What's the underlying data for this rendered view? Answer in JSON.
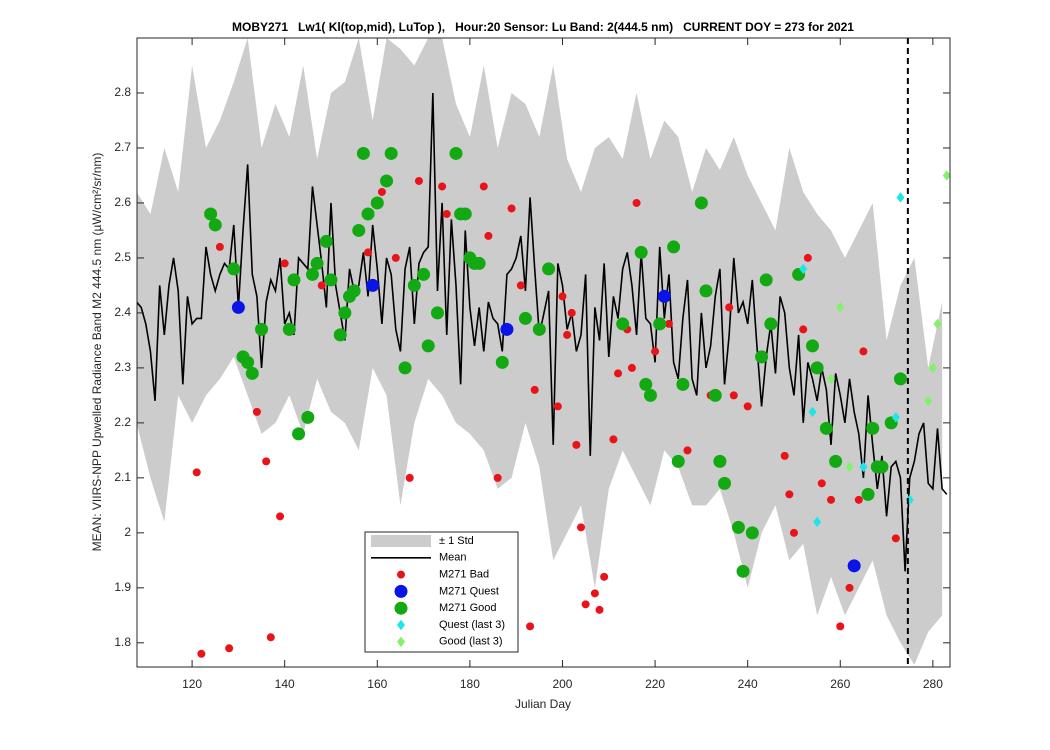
{
  "chart_data": {
    "type": "line",
    "title": "MOBY271   Lw1( Kl(top,mid), LuTop ),   Hour:20 Sensor: Lu Band: 2(444.5 nm)   CURRENT DOY = 273 for 2021",
    "xlabel": "Julian Day",
    "ylabel": "MEAN: VIIRS-NPP Upwelled Radiance Band M2 444.5 nm (µW/cm²/sr/nm)",
    "xlim": [
      108.1,
      283.7
    ],
    "ylim": [
      1.756,
      2.9
    ],
    "xticks": [
      120,
      140,
      160,
      180,
      200,
      220,
      240,
      260,
      280
    ],
    "yticks": [
      1.8,
      1.9,
      2,
      2.1,
      2.2,
      2.3,
      2.4,
      2.5,
      2.6,
      2.7,
      2.8
    ],
    "vline": 274.6,
    "series": [
      {
        "name": "± 1 Std",
        "type": "band",
        "color": "#cccccc",
        "x": [
          108,
          111,
          114,
          117,
          120,
          123,
          126,
          129,
          132,
          135,
          138,
          141,
          144,
          147,
          150,
          153,
          156,
          159,
          162,
          165,
          168,
          171,
          174,
          177,
          180,
          183,
          186,
          189,
          192,
          195,
          198,
          201,
          204,
          207,
          210,
          213,
          216,
          219,
          222,
          225,
          228,
          231,
          234,
          237,
          240,
          243,
          246,
          249,
          252,
          255,
          258,
          261,
          264,
          267,
          270,
          273,
          276,
          279,
          282
        ],
        "upper": [
          2.62,
          2.58,
          2.7,
          2.62,
          2.85,
          2.7,
          2.75,
          2.82,
          2.9,
          2.7,
          2.78,
          2.72,
          2.85,
          2.68,
          2.8,
          2.82,
          2.9,
          2.75,
          2.9,
          2.88,
          2.85,
          2.9,
          2.9,
          2.78,
          2.72,
          2.85,
          2.7,
          2.8,
          2.78,
          2.72,
          2.85,
          2.68,
          2.62,
          2.7,
          2.72,
          2.68,
          2.8,
          2.68,
          2.75,
          2.72,
          2.62,
          2.7,
          2.66,
          2.72,
          2.65,
          2.6,
          2.55,
          2.7,
          2.62,
          2.58,
          2.55,
          2.5,
          2.55,
          2.6,
          2.35,
          2.45,
          2.5,
          2.3,
          2.42
        ],
        "lower": [
          2.2,
          2.1,
          2.02,
          2.25,
          2.2,
          2.25,
          2.28,
          2.32,
          2.25,
          2.18,
          2.2,
          2.25,
          2.18,
          2.28,
          2.22,
          2.2,
          2.15,
          2.3,
          2.25,
          2.05,
          2.2,
          2.28,
          2.25,
          2.2,
          2.18,
          2.15,
          2.08,
          2.1,
          2.2,
          2.12,
          1.95,
          2.0,
          2.05,
          1.9,
          2.08,
          2.15,
          2.1,
          2.05,
          2.15,
          2.12,
          2.05,
          2.05,
          2.08,
          2.0,
          1.9,
          2.0,
          2.05,
          1.95,
          1.98,
          1.85,
          1.92,
          1.85,
          1.9,
          1.95,
          1.85,
          1.8,
          1.76,
          1.82,
          1.85
        ]
      },
      {
        "name": "Mean",
        "type": "line",
        "color": "#000000",
        "x": [
          108,
          109,
          110,
          111,
          112,
          113,
          114,
          115,
          116,
          117,
          118,
          119,
          120,
          121,
          122,
          123,
          124,
          125,
          126,
          127,
          128,
          129,
          130,
          131,
          132,
          133,
          134,
          135,
          136,
          137,
          138,
          139,
          140,
          141,
          142,
          143,
          144,
          145,
          146,
          147,
          148,
          149,
          150,
          151,
          152,
          153,
          154,
          155,
          156,
          157,
          158,
          159,
          160,
          161,
          162,
          163,
          164,
          165,
          166,
          167,
          168,
          169,
          170,
          171,
          172,
          173,
          174,
          175,
          176,
          177,
          178,
          179,
          180,
          181,
          182,
          183,
          184,
          185,
          186,
          187,
          188,
          189,
          190,
          191,
          192,
          193,
          194,
          195,
          196,
          197,
          198,
          199,
          200,
          201,
          202,
          203,
          204,
          205,
          206,
          207,
          208,
          209,
          210,
          211,
          212,
          213,
          214,
          215,
          216,
          217,
          218,
          219,
          220,
          221,
          222,
          223,
          224,
          225,
          226,
          227,
          228,
          229,
          230,
          231,
          232,
          233,
          234,
          235,
          236,
          237,
          238,
          239,
          240,
          241,
          242,
          243,
          244,
          245,
          246,
          247,
          248,
          249,
          250,
          251,
          252,
          253,
          254,
          255,
          256,
          257,
          258,
          259,
          260,
          261,
          262,
          263,
          264,
          265,
          266,
          267,
          268,
          269,
          270,
          271,
          272,
          273,
          274,
          275,
          276,
          277,
          278,
          279,
          280,
          281,
          282,
          283
        ],
        "values": [
          2.42,
          2.41,
          2.38,
          2.33,
          2.24,
          2.45,
          2.36,
          2.45,
          2.5,
          2.44,
          2.27,
          2.43,
          2.38,
          2.39,
          2.39,
          2.52,
          2.47,
          2.44,
          2.47,
          2.49,
          2.48,
          2.56,
          2.41,
          2.55,
          2.67,
          2.47,
          2.43,
          2.3,
          2.42,
          2.46,
          2.44,
          2.5,
          2.38,
          2.4,
          2.36,
          2.5,
          2.49,
          2.48,
          2.63,
          2.56,
          2.49,
          2.41,
          2.6,
          2.45,
          2.4,
          2.35,
          2.48,
          2.44,
          2.45,
          2.51,
          2.43,
          2.56,
          2.48,
          2.38,
          2.5,
          2.47,
          2.37,
          2.33,
          2.48,
          2.52,
          2.38,
          2.49,
          2.51,
          2.52,
          2.8,
          2.44,
          2.6,
          2.36,
          2.57,
          2.45,
          2.27,
          2.55,
          2.41,
          2.34,
          2.41,
          2.33,
          2.42,
          2.39,
          2.38,
          2.33,
          2.47,
          2.48,
          2.5,
          2.54,
          2.44,
          2.61,
          2.48,
          2.36,
          2.4,
          2.44,
          2.16,
          2.49,
          2.45,
          2.37,
          2.4,
          2.33,
          2.36,
          2.47,
          2.14,
          2.41,
          2.35,
          2.49,
          2.32,
          2.43,
          2.39,
          2.48,
          2.51,
          2.45,
          2.36,
          2.51,
          2.39,
          2.38,
          2.31,
          2.52,
          2.39,
          2.47,
          2.31,
          2.28,
          2.39,
          2.46,
          2.28,
          2.25,
          2.4,
          2.3,
          2.34,
          2.43,
          2.48,
          2.27,
          2.36,
          2.5,
          2.4,
          2.42,
          2.38,
          2.46,
          2.34,
          2.23,
          2.32,
          2.38,
          2.29,
          2.43,
          2.4,
          2.3,
          2.25,
          2.36,
          2.2,
          2.31,
          2.28,
          2.24,
          2.3,
          2.26,
          2.16,
          2.29,
          2.25,
          2.2,
          2.28,
          2.22,
          2.18,
          2.1,
          2.25,
          2.16,
          2.08,
          2.14,
          2.03,
          2.12,
          2.13,
          2.1,
          1.93,
          2.1,
          2.13,
          2.18,
          2.2,
          2.09,
          2.08,
          2.19,
          2.08,
          2.07
        ]
      },
      {
        "name": "M271 Bad",
        "type": "scatter",
        "marker": "dot",
        "color": "#e8141a",
        "x": [
          121,
          122,
          126,
          128,
          134,
          136,
          137,
          139,
          140,
          148,
          158,
          161,
          164,
          167,
          169,
          174,
          175,
          183,
          184,
          186,
          189,
          191,
          193,
          194,
          199,
          200,
          201,
          202,
          203,
          204,
          205,
          207,
          208,
          209,
          211,
          212,
          214,
          215,
          216,
          220,
          223,
          227,
          232,
          236,
          237,
          240,
          248,
          249,
          250,
          252,
          253,
          256,
          258,
          260,
          262,
          264,
          265,
          272
        ],
        "values": [
          2.11,
          1.78,
          2.52,
          1.79,
          2.22,
          2.13,
          1.81,
          2.03,
          2.49,
          2.45,
          2.51,
          2.62,
          2.5,
          2.1,
          2.64,
          2.63,
          2.58,
          2.63,
          2.54,
          2.1,
          2.59,
          2.45,
          1.83,
          2.26,
          2.23,
          2.43,
          2.36,
          2.4,
          2.16,
          2.01,
          1.87,
          1.89,
          1.86,
          1.92,
          2.17,
          2.29,
          2.37,
          2.3,
          2.6,
          2.33,
          2.38,
          2.15,
          2.25,
          2.41,
          2.25,
          2.23,
          2.14,
          2.07,
          2.0,
          2.37,
          2.5,
          2.09,
          2.06,
          1.83,
          1.9,
          2.06,
          2.33,
          1.99
        ]
      },
      {
        "name": "M271 Quest",
        "type": "scatter",
        "marker": "circle",
        "color": "#0a14e6",
        "x": [
          130,
          159,
          188,
          222,
          263
        ],
        "values": [
          2.41,
          2.45,
          2.37,
          2.43,
          1.94
        ]
      },
      {
        "name": "M271 Good",
        "type": "scatter",
        "marker": "circle",
        "color": "#12a912",
        "x": [
          124,
          125,
          129,
          131,
          132,
          133,
          135,
          141,
          142,
          143,
          145,
          146,
          147,
          149,
          150,
          152,
          153,
          154,
          155,
          156,
          157,
          158,
          160,
          162,
          163,
          166,
          168,
          170,
          171,
          173,
          177,
          178,
          179,
          180,
          181,
          182,
          187,
          192,
          195,
          197,
          213,
          217,
          218,
          219,
          221,
          224,
          225,
          226,
          230,
          231,
          233,
          234,
          235,
          238,
          239,
          241,
          243,
          244,
          245,
          251,
          254,
          255,
          257,
          259,
          266,
          267,
          268,
          269,
          271,
          273
        ],
        "values": [
          2.58,
          2.56,
          2.48,
          2.32,
          2.31,
          2.29,
          2.37,
          2.37,
          2.46,
          2.18,
          2.21,
          2.47,
          2.49,
          2.53,
          2.46,
          2.36,
          2.4,
          2.43,
          2.44,
          2.55,
          2.69,
          2.58,
          2.6,
          2.64,
          2.69,
          2.3,
          2.45,
          2.47,
          2.34,
          2.4,
          2.69,
          2.58,
          2.58,
          2.5,
          2.49,
          2.49,
          2.31,
          2.39,
          2.37,
          2.48,
          2.38,
          2.51,
          2.27,
          2.25,
          2.38,
          2.52,
          2.13,
          2.27,
          2.6,
          2.44,
          2.25,
          2.13,
          2.09,
          2.01,
          1.93,
          2.0,
          2.32,
          2.46,
          2.38,
          2.47,
          2.34,
          2.3,
          2.19,
          2.13,
          2.07,
          2.19,
          2.12,
          2.12,
          2.2,
          2.28
        ]
      },
      {
        "name": "Quest (last 3)",
        "type": "scatter",
        "marker": "diamond",
        "color": "#1de6e6",
        "x": [
          252,
          254,
          255,
          265,
          272,
          273,
          275
        ],
        "values": [
          2.48,
          2.22,
          2.02,
          2.12,
          2.21,
          2.61,
          2.06
        ]
      },
      {
        "name": "Good (last 3)",
        "type": "scatter",
        "marker": "diamond",
        "color": "#80f26b",
        "x": [
          258,
          260,
          262,
          279,
          280,
          281,
          283
        ],
        "values": [
          2.28,
          2.41,
          2.12,
          2.24,
          2.3,
          2.38,
          2.65
        ]
      }
    ]
  }
}
